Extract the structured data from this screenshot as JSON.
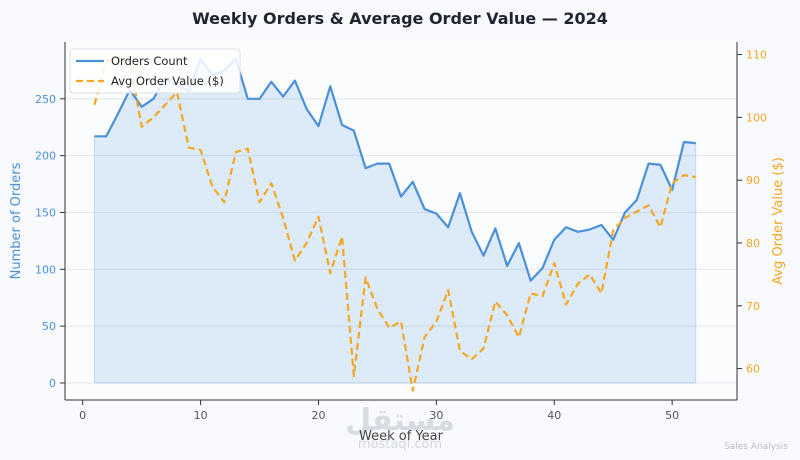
{
  "chart_data": {
    "type": "line",
    "title": "Weekly Orders & Average Order Value — 2024",
    "xlabel": "Week of Year",
    "x": [
      1,
      2,
      3,
      4,
      5,
      6,
      7,
      8,
      9,
      10,
      11,
      12,
      13,
      14,
      15,
      16,
      17,
      18,
      19,
      20,
      21,
      22,
      23,
      24,
      25,
      26,
      27,
      28,
      29,
      30,
      31,
      32,
      33,
      34,
      35,
      36,
      37,
      38,
      39,
      40,
      41,
      42,
      43,
      44,
      45,
      46,
      47,
      48,
      49,
      50,
      51,
      52
    ],
    "xlim": [
      -1.5,
      55.5
    ],
    "xticks": [
      0,
      10,
      20,
      30,
      40,
      50
    ],
    "grid": true,
    "legend_position": "top-left",
    "series": [
      {
        "name": "Orders Count",
        "axis": "left",
        "style": "solid",
        "fill": true,
        "color": "#4a90d9",
        "values": [
          217,
          217,
          237,
          258,
          243,
          250,
          268,
          262,
          257,
          285,
          271,
          275,
          285,
          250,
          250,
          265,
          252,
          266,
          241,
          226,
          261,
          227,
          222,
          189,
          193,
          193,
          164,
          177,
          153,
          149,
          137,
          167,
          133,
          112,
          136,
          103,
          123,
          90,
          101,
          126,
          137,
          133,
          135,
          139,
          126,
          150,
          161,
          193,
          192,
          170,
          212,
          211
        ]
      },
      {
        "name": "Avg Order Value ($)",
        "axis": "right",
        "style": "dashed",
        "fill": false,
        "color": "#f5a623",
        "values": [
          102,
          109,
          109.5,
          109,
          98.5,
          100,
          102,
          104,
          95.2,
          94.8,
          89,
          86.5,
          94.5,
          95,
          86.5,
          89.5,
          84,
          77.2,
          80,
          84.2,
          75.2,
          81,
          58.8,
          74.5,
          69.5,
          66.5,
          67.5,
          56.5,
          65,
          67.5,
          72.5,
          62.8,
          61.5,
          63.2,
          70.7,
          68.5,
          65,
          72,
          71.5,
          76.8,
          70.2,
          73.5,
          75,
          72,
          82,
          84,
          85,
          86,
          82.5,
          89.5,
          90.8,
          90.5
        ]
      }
    ],
    "y_left": {
      "label": "Number of Orders",
      "ylim": [
        -15,
        300
      ],
      "ticks": [
        0,
        50,
        100,
        150,
        200,
        250
      ],
      "color": "#4a90d9"
    },
    "y_right": {
      "label": "Avg Order Value ($)",
      "ylim": [
        55,
        112
      ],
      "ticks": [
        60,
        70,
        80,
        90,
        100,
        110
      ],
      "color": "#f5a623"
    }
  },
  "colors": {
    "background": "#f8fafd",
    "title": "#1f2430",
    "axis": "#333333",
    "grid": "#e3e6ec",
    "fill": "#4a90d9"
  },
  "watermark": "مستقل\nmostaql.com",
  "footer_note": "Sales Analysis"
}
